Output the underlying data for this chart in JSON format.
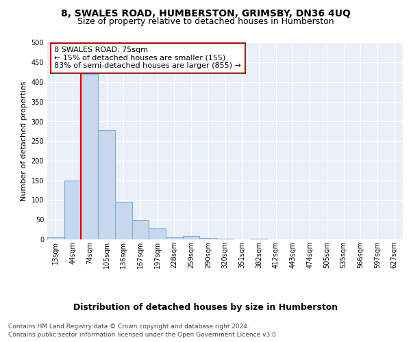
{
  "title": "8, SWALES ROAD, HUMBERSTON, GRIMSBY, DN36 4UQ",
  "subtitle": "Size of property relative to detached houses in Humberston",
  "xlabel": "Distribution of detached houses by size in Humberston",
  "ylabel": "Number of detached properties",
  "footnote1": "Contains HM Land Registry data © Crown copyright and database right 2024.",
  "footnote2": "Contains public sector information licensed under the Open Government Licence v3.0.",
  "categories": [
    "13sqm",
    "44sqm",
    "74sqm",
    "105sqm",
    "136sqm",
    "167sqm",
    "197sqm",
    "228sqm",
    "259sqm",
    "290sqm",
    "320sqm",
    "351sqm",
    "382sqm",
    "412sqm",
    "443sqm",
    "474sqm",
    "505sqm",
    "535sqm",
    "566sqm",
    "597sqm",
    "627sqm"
  ],
  "values": [
    5,
    150,
    420,
    278,
    95,
    48,
    27,
    5,
    9,
    4,
    2,
    0,
    1,
    0,
    0,
    0,
    0,
    0,
    0,
    0,
    0
  ],
  "bar_color": "#c5d8ed",
  "bar_edge_color": "#7aaed0",
  "red_line_index": 2,
  "annotation_line1": "8 SWALES ROAD: 75sqm",
  "annotation_line2": "← 15% of detached houses are smaller (155)",
  "annotation_line3": "83% of semi-detached houses are larger (855) →",
  "annotation_box_color": "#ffffff",
  "annotation_border_color": "#cc0000",
  "ylim": [
    0,
    500
  ],
  "yticks": [
    0,
    50,
    100,
    150,
    200,
    250,
    300,
    350,
    400,
    450,
    500
  ],
  "bg_color": "#eaf0f8",
  "title_fontsize": 10,
  "subtitle_fontsize": 9,
  "xlabel_fontsize": 9,
  "ylabel_fontsize": 8,
  "tick_fontsize": 7,
  "footnote_fontsize": 6.5,
  "annotation_fontsize": 8
}
